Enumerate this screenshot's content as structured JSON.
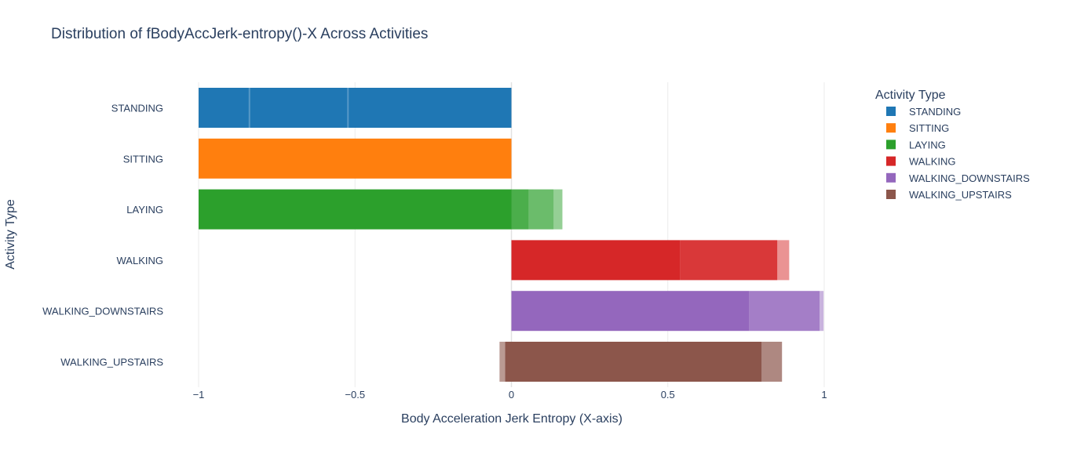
{
  "chart_data": {
    "type": "bar",
    "orientation": "horizontal",
    "title": "Distribution of fBodyAccJerk-entropy()-X Across Activities",
    "xlabel": "Body Acceleration Jerk Entropy (X-axis)",
    "ylabel": "Activity Type",
    "xlim": [
      -1,
      1
    ],
    "x_ticks": [
      {
        "value": -1,
        "label": "−1"
      },
      {
        "value": -0.5,
        "label": "−0.5"
      },
      {
        "value": 0,
        "label": "0"
      },
      {
        "value": 0.5,
        "label": "0.5"
      },
      {
        "value": 1,
        "label": "1"
      }
    ],
    "grid": true,
    "legend": {
      "title": "Activity Type",
      "placement": "right"
    },
    "categories": [
      "STANDING",
      "SITTING",
      "LAYING",
      "WALKING",
      "WALKING_DOWNSTAIRS",
      "WALKING_UPSTAIRS"
    ],
    "series": [
      {
        "name": "STANDING",
        "color": "#1f77b4",
        "segments": [
          {
            "from": -1,
            "to": 0,
            "opacity": 1
          },
          {
            "from": -0.84,
            "to": -0.835,
            "opacity": 0.25,
            "highlight": true
          },
          {
            "from": -0.525,
            "to": -0.52,
            "opacity": 0.25,
            "highlight": true
          }
        ]
      },
      {
        "name": "SITTING",
        "color": "#ff7f0e",
        "segments": [
          {
            "from": -1,
            "to": 0,
            "opacity": 1
          }
        ]
      },
      {
        "name": "LAYING",
        "color": "#2ca02c",
        "segments": [
          {
            "from": -1,
            "to": 0,
            "opacity": 1
          },
          {
            "from": 0,
            "to": 0.055,
            "opacity": 0.85
          },
          {
            "from": 0.055,
            "to": 0.135,
            "opacity": 0.7
          },
          {
            "from": 0.135,
            "to": 0.163,
            "opacity": 0.5
          }
        ]
      },
      {
        "name": "WALKING",
        "color": "#d62728",
        "segments": [
          {
            "from": 0,
            "to": 0.54,
            "opacity": 1
          },
          {
            "from": 0.54,
            "to": 0.85,
            "opacity": 0.92
          },
          {
            "from": 0.85,
            "to": 0.888,
            "opacity": 0.5
          }
        ]
      },
      {
        "name": "WALKING_DOWNSTAIRS",
        "color": "#9467bd",
        "segments": [
          {
            "from": 0,
            "to": 0.76,
            "opacity": 1
          },
          {
            "from": 0.76,
            "to": 0.985,
            "opacity": 0.85
          },
          {
            "from": 0.985,
            "to": 0.998,
            "opacity": 0.5
          }
        ]
      },
      {
        "name": "WALKING_UPSTAIRS",
        "color": "#8c564b",
        "segments": [
          {
            "from": -0.038,
            "to": -0.02,
            "opacity": 0.6
          },
          {
            "from": -0.02,
            "to": 0.8,
            "opacity": 1
          },
          {
            "from": 0.8,
            "to": 0.865,
            "opacity": 0.7
          }
        ]
      }
    ]
  }
}
